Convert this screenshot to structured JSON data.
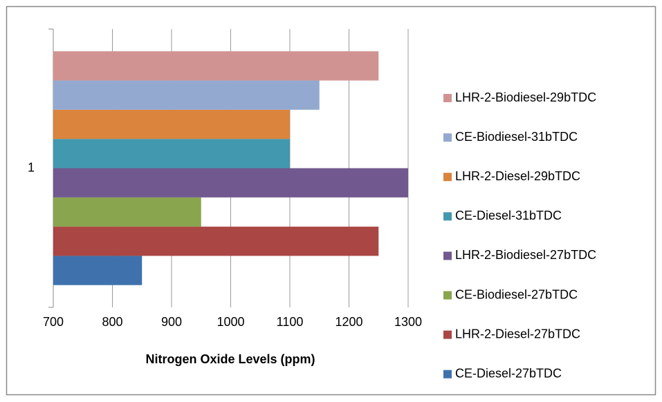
{
  "chart_data": {
    "type": "bar",
    "orientation": "horizontal",
    "categories": [
      "1"
    ],
    "x_label": "Nitrogen Oxide Levels (ppm)",
    "xlim": [
      700,
      1300
    ],
    "xticks": [
      700,
      800,
      900,
      1000,
      1100,
      1200,
      1300
    ],
    "grid": true,
    "legend": "right",
    "series": [
      {
        "name": "CE-Diesel-27bTDC",
        "color": "#3f72ad",
        "values": [
          850
        ]
      },
      {
        "name": "LHR-2-Diesel-27bTDC",
        "color": "#aa4643",
        "values": [
          1250
        ]
      },
      {
        "name": "CE-Biodiesel-27bTDC",
        "color": "#89a54e",
        "values": [
          950
        ]
      },
      {
        "name": "LHR-2-Biodiesel-27bTDC",
        "color": "#71588f",
        "values": [
          1300
        ]
      },
      {
        "name": "CE-Diesel-31bTDC",
        "color": "#4198af",
        "values": [
          1100
        ]
      },
      {
        "name": "LHR-2-Diesel-29bTDC",
        "color": "#db843d",
        "values": [
          1100
        ]
      },
      {
        "name": "CE-Biodiesel-31bTDC",
        "color": "#93a9cf",
        "values": [
          1150
        ]
      },
      {
        "name": "LHR-2-Biodiesel-29bTDC",
        "color": "#d19392",
        "values": [
          1250
        ]
      }
    ]
  }
}
